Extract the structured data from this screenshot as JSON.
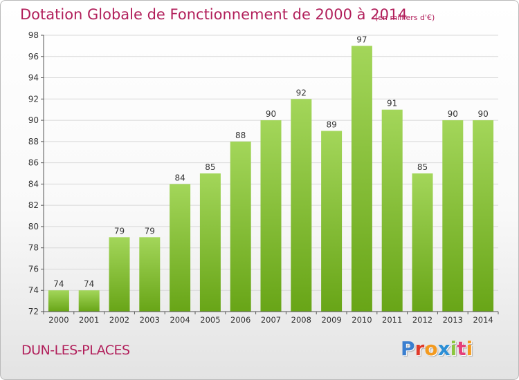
{
  "title": "Dotation Globale de Fonctionnement de 2000 à 2014",
  "unit_note": "(en milliers d'€)",
  "place_name": "DUN-LES-PLACES",
  "brand": {
    "text": "Proxiti",
    "letter_colors": [
      "#3a7fd0",
      "#e03a2a",
      "#f39a1f",
      "#2c8fd6",
      "#8cc63f",
      "#e5407a",
      "#f39a1f"
    ]
  },
  "colors": {
    "title": "#b11e5a",
    "bar_top": "#a3d65a",
    "bar_bottom": "#68a517",
    "grid": "#d8d8d8",
    "axis": "#555555",
    "text": "#333333"
  },
  "chart_data": {
    "type": "bar",
    "categories": [
      "2000",
      "2001",
      "2002",
      "2003",
      "2004",
      "2005",
      "2006",
      "2007",
      "2008",
      "2009",
      "2010",
      "2011",
      "2012",
      "2013",
      "2014"
    ],
    "values": [
      74,
      74,
      79,
      79,
      84,
      85,
      88,
      90,
      92,
      89,
      97,
      91,
      85,
      90,
      90
    ],
    "data_labels": [
      "74",
      "74",
      "79",
      "79",
      "84",
      "85",
      "88",
      "90",
      "92",
      "89",
      "97",
      "91",
      "85",
      "90",
      "90"
    ],
    "ylim": [
      72,
      98
    ],
    "yticks": [
      72,
      74,
      76,
      78,
      80,
      82,
      84,
      86,
      88,
      90,
      92,
      94,
      96,
      98
    ],
    "ytick_labels": [
      "72",
      "74",
      "76",
      "78",
      "80",
      "82",
      "84",
      "86",
      "88",
      "90",
      "92",
      "94",
      "96",
      "98"
    ],
    "grid": true,
    "legend": "none",
    "xlabel": "",
    "ylabel": ""
  }
}
